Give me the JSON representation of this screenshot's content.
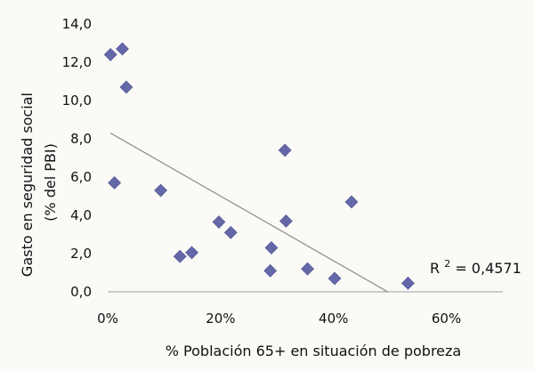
{
  "chart_data": {
    "type": "scatter",
    "xlabel": "% Población 65+ en situación de pobreza",
    "ylabel_line1": "Gasto en seguridad social",
    "ylabel_line2": "(% del PBI)",
    "xlim": [
      0,
      0.7
    ],
    "ylim": [
      0,
      14
    ],
    "x_ticks": [
      {
        "value": 0,
        "label": "0%"
      },
      {
        "value": 0.2,
        "label": "20%"
      },
      {
        "value": 0.4,
        "label": "40%"
      },
      {
        "value": 0.6,
        "label": "60%"
      }
    ],
    "y_ticks": [
      {
        "value": 0,
        "label": "0,0"
      },
      {
        "value": 2,
        "label": "2,0"
      },
      {
        "value": 4,
        "label": "4,0"
      },
      {
        "value": 6,
        "label": "6,0"
      },
      {
        "value": 8,
        "label": "8,0"
      },
      {
        "value": 10,
        "label": "10,0"
      },
      {
        "value": 12,
        "label": "12,0"
      },
      {
        "value": 14,
        "label": "14,0"
      }
    ],
    "grid": false,
    "legend": "none",
    "marker_color": "#6468a8",
    "trendline_color": "#8a8a8a",
    "points": [
      {
        "x": 0.005,
        "y": 12.4
      },
      {
        "x": 0.026,
        "y": 12.7
      },
      {
        "x": 0.033,
        "y": 10.7
      },
      {
        "x": 0.012,
        "y": 5.7
      },
      {
        "x": 0.094,
        "y": 5.3
      },
      {
        "x": 0.128,
        "y": 1.85
      },
      {
        "x": 0.149,
        "y": 2.05
      },
      {
        "x": 0.197,
        "y": 3.65
      },
      {
        "x": 0.218,
        "y": 3.1
      },
      {
        "x": 0.29,
        "y": 2.3
      },
      {
        "x": 0.288,
        "y": 1.1
      },
      {
        "x": 0.314,
        "y": 7.4
      },
      {
        "x": 0.316,
        "y": 3.7
      },
      {
        "x": 0.354,
        "y": 1.2
      },
      {
        "x": 0.402,
        "y": 0.7
      },
      {
        "x": 0.432,
        "y": 4.7
      },
      {
        "x": 0.532,
        "y": 0.45
      }
    ],
    "trendline": {
      "x": [
        0.005,
        0.496
      ],
      "y": [
        8.3,
        0.0
      ]
    },
    "annotation": {
      "text_base": "R",
      "text_sup": "2",
      "text_rest": " = 0,4571"
    }
  }
}
